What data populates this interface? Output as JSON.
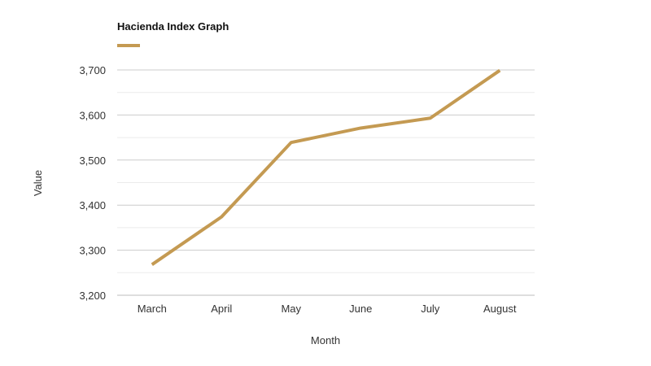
{
  "chart_data": {
    "type": "line",
    "title": "Hacienda Index Graph",
    "xlabel": "Month",
    "ylabel": "Value",
    "categories": [
      "March",
      "April",
      "May",
      "June",
      "July",
      "August"
    ],
    "series": [
      {
        "values": [
          3268,
          3374,
          3539,
          3571,
          3593,
          3699
        ]
      }
    ],
    "ylim": [
      3200,
      3700
    ],
    "yticks": [
      3200,
      3300,
      3400,
      3500,
      3600,
      3700
    ],
    "ytick_labels": [
      "3,200",
      "3,300",
      "3,400",
      "3,500",
      "3,600",
      "3,700"
    ],
    "grid": true,
    "legend": "top-left",
    "colors": {
      "series": "#c49a52"
    }
  }
}
